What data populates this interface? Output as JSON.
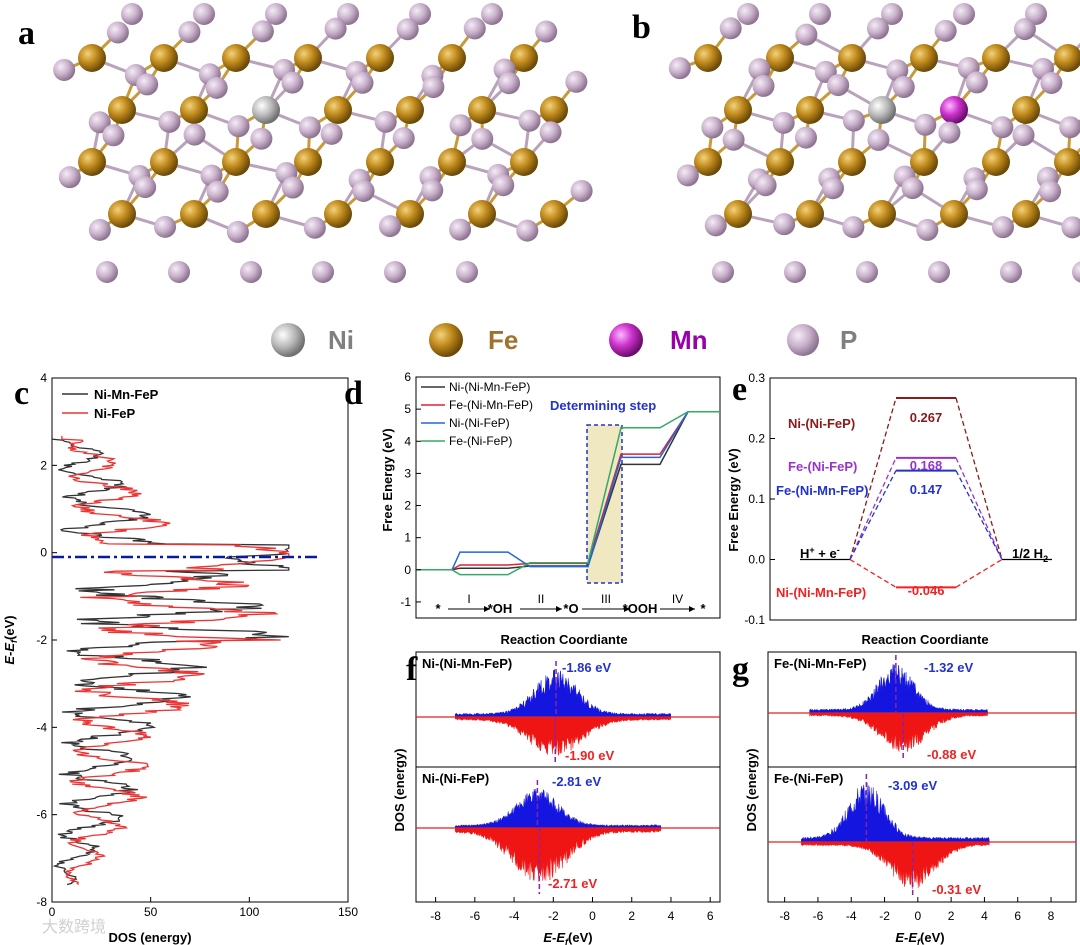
{
  "panel_labels": {
    "a": "a",
    "b": "b",
    "c": "c",
    "d": "d",
    "e": "e",
    "f": "f",
    "g": "g"
  },
  "legend_atoms": [
    {
      "name": "Ni",
      "color": "#9a9a9a",
      "text_color": "#808080"
    },
    {
      "name": "Fe",
      "color": "#b8860b",
      "text_color": "#a0722d"
    },
    {
      "name": "Mn",
      "color": "#cc33cc",
      "text_color": "#9900aa"
    },
    {
      "name": "P",
      "color": "#c7aec8",
      "text_color": "#808080"
    }
  ],
  "watermark": "大数跨境",
  "chart_data": [
    {
      "id": "c",
      "type": "line",
      "xlabel": "DOS (energy)",
      "ylabel_main": "E-E",
      "ylabel_sub": "f",
      "ylabel_unit": "(eV)",
      "xlim": [
        0,
        150
      ],
      "ylim": [
        -8,
        4
      ],
      "xticks": [
        "0",
        "50",
        "100",
        "150"
      ],
      "yticks": [
        "-8",
        "-6",
        "-4",
        "-2",
        "0",
        "2",
        "4"
      ],
      "fermi_level": 0,
      "series": [
        {
          "name": "Ni-Mn-FeP",
          "color": "#333333"
        },
        {
          "name": "Ni-FeP",
          "color": "#ee3333"
        }
      ]
    },
    {
      "id": "d",
      "type": "line",
      "ylabel": "Free Energy (eV)",
      "xlabel": "Reaction Coordiante",
      "ylim": [
        -1.5,
        6
      ],
      "yticks": [
        "-1",
        "0",
        "1",
        "2",
        "3",
        "4",
        "5",
        "6"
      ],
      "states": [
        "*",
        "*OH",
        "*O",
        "*OOH",
        "*"
      ],
      "steps": [
        "I",
        "II",
        "III",
        "IV"
      ],
      "determining_label": "Determining step",
      "series": [
        {
          "name": "Ni-(Ni-Mn-FeP)",
          "color": "#333333",
          "values": [
            0,
            0.05,
            0.12,
            3.28,
            4.92
          ]
        },
        {
          "name": "Fe-(Ni-Mn-FeP)",
          "color": "#dd2233",
          "values": [
            0,
            0.15,
            0.2,
            3.6,
            4.92
          ]
        },
        {
          "name": "Ni-(Ni-FeP)",
          "color": "#2266dd",
          "values": [
            0,
            0.55,
            0.1,
            3.5,
            4.92
          ]
        },
        {
          "name": "Fe-(Ni-FeP)",
          "color": "#33aa66",
          "values": [
            0,
            -0.15,
            0.22,
            4.42,
            4.92
          ]
        }
      ]
    },
    {
      "id": "e",
      "type": "line",
      "ylabel": "Free Energy (eV)",
      "xlabel": "Reaction Coordiante",
      "ylim": [
        -0.1,
        0.3
      ],
      "yticks": [
        "-0.1",
        "0.0",
        "0.1",
        "0.2",
        "0.3"
      ],
      "start_label": "H",
      "start_label_tail": " + e",
      "end_label": "1/2 H",
      "series": [
        {
          "name": "Ni-(Ni-FeP)",
          "color": "#8b1a1a",
          "value": 0.267,
          "value_label": "0.267"
        },
        {
          "name": "Fe-(Ni-FeP)",
          "color": "#9933cc",
          "value": 0.168,
          "value_label": "0.168"
        },
        {
          "name": "Fe-(Ni-Mn-FeP)",
          "color": "#2233cc",
          "value": 0.147,
          "value_label": "0.147"
        },
        {
          "name": "Ni-(Ni-Mn-FeP)",
          "color": "#ee2222",
          "value": -0.046,
          "value_label": "-0.046"
        }
      ]
    },
    {
      "id": "f",
      "type": "area",
      "ylabel": "DOS (energy)",
      "xlabel_main": "E-E",
      "xlabel_sub": "f",
      "xlabel_unit": "(eV)",
      "xlim": [
        -9,
        6.5
      ],
      "xticks": [
        "-8",
        "-6",
        "-4",
        "-2",
        "0",
        "2",
        "4",
        "6"
      ],
      "subpanels": [
        {
          "name": "Ni-(Ni-Mn-FeP)",
          "up_center": -1.86,
          "up_label": "-1.86 eV",
          "down_center": -1.9,
          "down_label": "-1.90 eV",
          "range": [
            -7,
            4
          ]
        },
        {
          "name": "Ni-(Ni-FeP)",
          "up_center": -2.81,
          "up_label": "-2.81 eV",
          "down_center": -2.71,
          "down_label": "-2.71 eV",
          "range": [
            -7,
            3.5
          ]
        }
      ]
    },
    {
      "id": "g",
      "type": "area",
      "ylabel": "DOS (energy)",
      "xlabel_main": "E-E",
      "xlabel_sub": "f",
      "xlabel_unit": "(eV)",
      "xlim": [
        -9,
        9.5
      ],
      "xticks": [
        "-8",
        "-6",
        "-4",
        "-2",
        "0",
        "2",
        "4",
        "6",
        "8"
      ],
      "subpanels": [
        {
          "name": "Fe-(Ni-Mn-FeP)",
          "up_center": -1.32,
          "up_label": "-1.32 eV",
          "down_center": -0.88,
          "down_label": "-0.88 eV",
          "range": [
            -6.5,
            4.2
          ]
        },
        {
          "name": "Fe-(Ni-FeP)",
          "up_center": -3.09,
          "up_label": "-3.09 eV",
          "down_center": -0.31,
          "down_label": "-0.31 eV",
          "range": [
            -7,
            4.3
          ]
        }
      ]
    }
  ]
}
